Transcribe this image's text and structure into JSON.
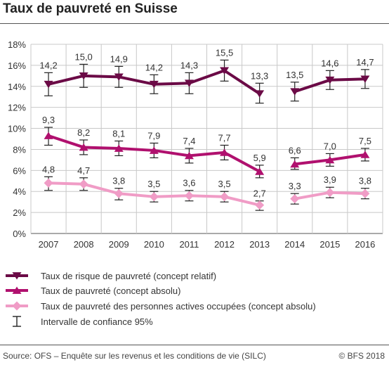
{
  "title": "Taux de pauvreté en Suisse",
  "source": "Source: OFS – Enquête sur les revenus et les conditions de vie (SILC)",
  "copyright": "© BFS 2018",
  "chart_data": {
    "type": "line",
    "categories": [
      "2007",
      "2008",
      "2009",
      "2010",
      "2011",
      "2012",
      "2013",
      "2014",
      "2015",
      "2016"
    ],
    "ylim": [
      0,
      18
    ],
    "yticks": [
      "0%",
      "2%",
      "4%",
      "6%",
      "8%",
      "10%",
      "12%",
      "14%",
      "16%",
      "18%"
    ],
    "grid": true,
    "legend_position": "bottom",
    "series": [
      {
        "name": "Taux de risque de pauvreté (concept relatif)",
        "color": "#6b0a46",
        "marker": "triangle-down",
        "values": [
          14.2,
          15.0,
          14.9,
          14.2,
          14.3,
          15.5,
          13.3,
          13.5,
          14.6,
          14.7
        ],
        "labels": [
          "14,2",
          "15,0",
          "14,9",
          "14,2",
          "14,3",
          "15,5",
          "13,3",
          "13,5",
          "14,6",
          "14,7"
        ],
        "ci": [
          [
            13.1,
            15.3
          ],
          [
            13.9,
            16.1
          ],
          [
            13.9,
            15.9
          ],
          [
            13.3,
            15.1
          ],
          [
            13.3,
            15.3
          ],
          [
            14.5,
            16.5
          ],
          [
            12.4,
            14.3
          ],
          [
            12.6,
            14.4
          ],
          [
            13.7,
            15.5
          ],
          [
            13.8,
            15.6
          ]
        ]
      },
      {
        "name": "Taux de pauvreté (concept absolu)",
        "color": "#b0106e",
        "marker": "triangle-up",
        "values": [
          9.3,
          8.2,
          8.1,
          7.9,
          7.4,
          7.7,
          5.9,
          6.6,
          7.0,
          7.5
        ],
        "labels": [
          "9,3",
          "8,2",
          "8,1",
          "7,9",
          "7,4",
          "7,7",
          "5,9",
          "6,6",
          "7,0",
          "7,5"
        ],
        "ci": [
          [
            8.4,
            10.1
          ],
          [
            7.5,
            8.9
          ],
          [
            7.4,
            8.8
          ],
          [
            7.2,
            8.6
          ],
          [
            6.7,
            8.1
          ],
          [
            7.0,
            8.4
          ],
          [
            5.3,
            6.5
          ],
          [
            6.1,
            7.2
          ],
          [
            6.4,
            7.6
          ],
          [
            6.9,
            8.1
          ]
        ]
      },
      {
        "name": "Taux de pauvreté des personnes actives occupées (concept absolu)",
        "color": "#f09cc6",
        "marker": "diamond",
        "values": [
          4.8,
          4.7,
          3.8,
          3.5,
          3.6,
          3.5,
          2.7,
          3.3,
          3.9,
          3.8
        ],
        "labels": [
          "4,8",
          "4,7",
          "3,8",
          "3,5",
          "3,6",
          "3,5",
          "2,7",
          "3,3",
          "3,9",
          "3,8"
        ],
        "ci": [
          [
            4.1,
            5.4
          ],
          [
            4.1,
            5.3
          ],
          [
            3.2,
            4.3
          ],
          [
            3.0,
            4.0
          ],
          [
            3.1,
            4.1
          ],
          [
            3.0,
            4.0
          ],
          [
            2.2,
            3.1
          ],
          [
            2.8,
            3.8
          ],
          [
            3.4,
            4.4
          ],
          [
            3.3,
            4.3
          ]
        ]
      }
    ],
    "ci_legend_label": "Intervalle de confiance 95%",
    "gaps_after_index": [
      6
    ]
  }
}
